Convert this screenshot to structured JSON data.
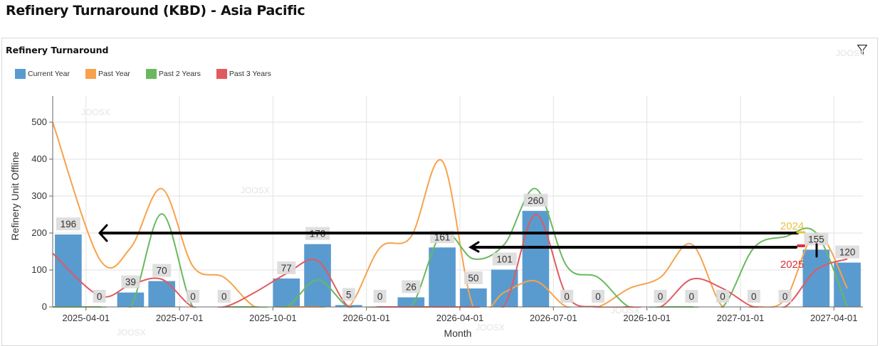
{
  "page": {
    "title": "Refinery Turnaround (KBD) - Asia Pacific"
  },
  "panel": {
    "title": "Refinery Turnaround",
    "watermark": "JOOSX"
  },
  "icons": {
    "filter": "filter-icon"
  },
  "chart_data": {
    "type": "bar",
    "xlabel": "Month",
    "ylabel": "Refinery Unit Offline",
    "ylim": [
      0,
      560
    ],
    "yticks": [
      0,
      100,
      200,
      300,
      400,
      500
    ],
    "xticks": [
      "2025-04-01",
      "2025-07-01",
      "2025-10-01",
      "2026-01-01",
      "2026-04-01",
      "2026-07-01",
      "2026-10-01",
      "2027-01-01",
      "2027-04-01"
    ],
    "legend_position": "top-left",
    "grid": true,
    "x_start": "2025-03",
    "x_end": "2027-04",
    "bars": {
      "name": "Current Year",
      "color": "#5a9bcf",
      "x": [
        "2025-03",
        "2025-04",
        "2025-05",
        "2025-06",
        "2025-07",
        "2025-08",
        "2025-09",
        "2025-10",
        "2025-11",
        "2025-12",
        "2026-01",
        "2026-02",
        "2026-03",
        "2026-04",
        "2026-05",
        "2026-06",
        "2026-07",
        "2026-08",
        "2026-09",
        "2026-10",
        "2026-11",
        "2026-12",
        "2027-01",
        "2027-02",
        "2027-03",
        "2027-04"
      ],
      "values": [
        196,
        0,
        39,
        70,
        0,
        0,
        null,
        77,
        170,
        5,
        0,
        26,
        161,
        50,
        101,
        260,
        0,
        0,
        null,
        0,
        0,
        0,
        0,
        0,
        155,
        120
      ]
    },
    "series": [
      {
        "name": "Past Year",
        "color": "#f7a24b",
        "x": [
          "2025-03",
          "2025-04",
          "2025-05",
          "2025-06",
          "2025-07",
          "2025-08",
          "2025-09",
          "2025-10",
          "2025-11",
          "2025-12",
          "2026-01",
          "2026-02",
          "2026-03",
          "2026-04",
          "2026-05",
          "2026-06",
          "2026-07",
          "2026-08",
          "2026-09",
          "2026-10",
          "2026-11",
          "2026-12",
          "2027-01",
          "2027-02",
          "2027-03",
          "2027-04"
        ],
        "values": [
          500,
          130,
          160,
          320,
          110,
          80,
          0,
          0,
          0,
          0,
          160,
          190,
          395,
          0,
          40,
          70,
          0,
          0,
          50,
          80,
          170,
          0,
          0,
          20,
          200,
          50
        ]
      },
      {
        "name": "Past 2 Years",
        "color": "#69b85f",
        "x": [
          "2025-03",
          "2025-04",
          "2025-05",
          "2025-06",
          "2025-07",
          "2025-08",
          "2025-09",
          "2025-10",
          "2025-11",
          "2025-12",
          "2026-01",
          "2026-02",
          "2026-03",
          "2026-04",
          "2026-05",
          "2026-06",
          "2026-07",
          "2026-08",
          "2026-09",
          "2026-10",
          "2026-11",
          "2026-12",
          "2027-01",
          "2027-02",
          "2027-03",
          "2027-04"
        ],
        "values": [
          0,
          0,
          0,
          252,
          0,
          0,
          0,
          0,
          73,
          0,
          0,
          0,
          200,
          130,
          170,
          320,
          110,
          80,
          0,
          0,
          0,
          0,
          160,
          190,
          200,
          0
        ]
      },
      {
        "name": "Past 3 Years",
        "color": "#e05a5f",
        "x": [
          "2025-03",
          "2025-04",
          "2025-05",
          "2025-06",
          "2025-07",
          "2025-08",
          "2025-09",
          "2025-10",
          "2025-11",
          "2025-12",
          "2026-01",
          "2026-02",
          "2026-03",
          "2026-04",
          "2026-05",
          "2026-06",
          "2026-07",
          "2026-08",
          "2026-09",
          "2026-10",
          "2026-11",
          "2026-12",
          "2027-01",
          "2027-02",
          "2027-03",
          "2027-04"
        ],
        "values": [
          145,
          30,
          60,
          75,
          0,
          0,
          40,
          90,
          125,
          0,
          0,
          0,
          0,
          0,
          5,
          250,
          30,
          0,
          0,
          0,
          75,
          50,
          0,
          0,
          100,
          130
        ]
      }
    ],
    "annotations": [
      {
        "text": "2024",
        "color": "#e8c23a",
        "x": "2027-02"
      },
      {
        "text": "2025",
        "color": "#d9333b",
        "x": "2027-02"
      }
    ]
  }
}
